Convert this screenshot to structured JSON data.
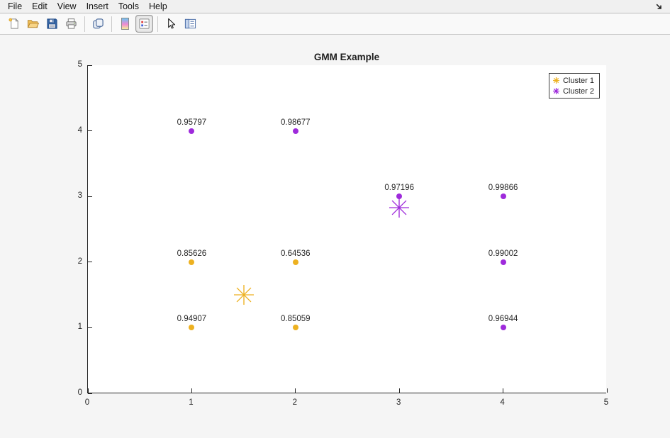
{
  "menu_bar": {
    "items": [
      "File",
      "Edit",
      "View",
      "Insert",
      "Tools",
      "Help"
    ]
  },
  "toolbar": {
    "buttons": [
      {
        "name": "new-figure"
      },
      {
        "name": "open-figure"
      },
      {
        "name": "save-figure"
      },
      {
        "name": "print-figure"
      },
      {
        "name": "copy-clipboard",
        "separator_before": true
      },
      {
        "name": "colormap",
        "separator_before": true
      },
      {
        "name": "legend-toggle",
        "pressed": true
      },
      {
        "name": "select-pointer",
        "separator_before": true
      },
      {
        "name": "properties-panel"
      }
    ]
  },
  "chart_data": {
    "type": "scatter",
    "title": "GMM Example",
    "xlabel": "",
    "ylabel": "",
    "xlim": [
      0,
      5
    ],
    "ylim": [
      0,
      5
    ],
    "xticks": [
      "0",
      "1",
      "2",
      "3",
      "4",
      "5"
    ],
    "yticks": [
      "0",
      "1",
      "2",
      "3",
      "4",
      "5"
    ],
    "grid": false,
    "legend_position": "northeast",
    "series": [
      {
        "name": "Cluster 1",
        "color": "#EDB120",
        "marker": "point",
        "points": [
          {
            "x": 1,
            "y": 2,
            "label": "0.85626"
          },
          {
            "x": 2,
            "y": 2,
            "label": "0.64536"
          },
          {
            "x": 1,
            "y": 1,
            "label": "0.94907"
          },
          {
            "x": 2,
            "y": 1,
            "label": "0.85059"
          }
        ],
        "center": {
          "x": 1.5,
          "y": 1.5,
          "marker": "asterisk"
        }
      },
      {
        "name": "Cluster 2",
        "color": "#9E2ADB",
        "marker": "point",
        "points": [
          {
            "x": 1,
            "y": 4,
            "label": "0.95797"
          },
          {
            "x": 2,
            "y": 4,
            "label": "0.98677"
          },
          {
            "x": 3,
            "y": 3,
            "label": "0.97196"
          },
          {
            "x": 4,
            "y": 3,
            "label": "0.99866"
          },
          {
            "x": 4,
            "y": 2,
            "label": "0.99002"
          },
          {
            "x": 4,
            "y": 1,
            "label": "0.96944"
          }
        ],
        "center": {
          "x": 3,
          "y": 2.8333,
          "marker": "asterisk"
        }
      }
    ]
  }
}
